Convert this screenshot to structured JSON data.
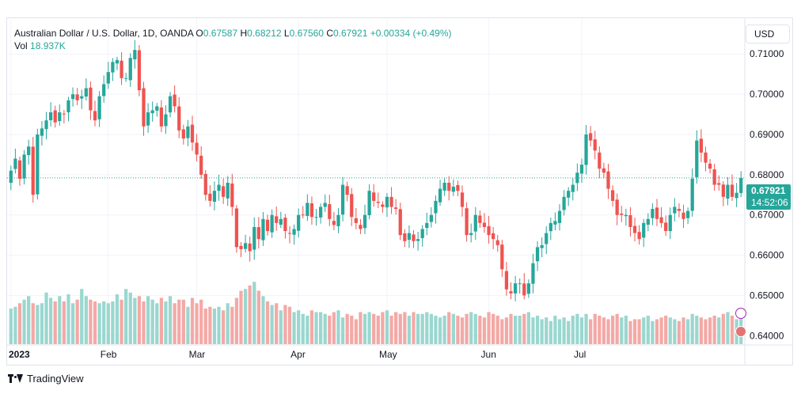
{
  "header": {
    "symbol": "Australian Dollar / U.S. Dollar, 1D, OANDA",
    "o_label": "O",
    "o_value": "0.67587",
    "h_label": "H",
    "h_value": "0.68212",
    "l_label": "L",
    "l_value": "0.67560",
    "c_label": "C",
    "c_value": "0.67921",
    "change": "+0.00334 (+0.49%)",
    "vol_label": "Vol",
    "vol_value": "18.937K"
  },
  "currency_button": "USD",
  "price_tag": {
    "price": "0.67921",
    "countdown": "14:52:06"
  },
  "brand": "TradingView",
  "colors": {
    "up": "#26a69a",
    "down": "#ef5350",
    "up_vol": "#9ad7cf",
    "down_vol": "#f3a9a6",
    "grid": "#f0f3fa"
  },
  "chart_data": {
    "type": "candlestick",
    "title": "Australian Dollar / U.S. Dollar, 1D, OANDA",
    "ylim": [
      0.6375,
      0.7185
    ],
    "y_ticks": [
      "0.71000",
      "0.70000",
      "0.69000",
      "0.68000",
      "0.67000",
      "0.66000",
      "0.65000",
      "0.64000"
    ],
    "x_ticks": [
      {
        "label": "2023",
        "index": 0
      },
      {
        "label": "Feb",
        "index": 22
      },
      {
        "label": "Mar",
        "index": 42
      },
      {
        "label": "Apr",
        "index": 65
      },
      {
        "label": "May",
        "index": 85
      },
      {
        "label": "Jun",
        "index": 108
      },
      {
        "label": "Jul",
        "index": 129
      }
    ],
    "last_close": 0.67921,
    "closes": [
      0.681,
      0.684,
      0.679,
      0.685,
      0.687,
      0.675,
      0.69,
      0.6915,
      0.6935,
      0.6955,
      0.693,
      0.6955,
      0.695,
      0.6985,
      0.7,
      0.6985,
      0.6995,
      0.7015,
      0.696,
      0.6935,
      0.6995,
      0.7025,
      0.7055,
      0.708,
      0.7085,
      0.704,
      0.704,
      0.709,
      0.711,
      0.701,
      0.692,
      0.6955,
      0.696,
      0.697,
      0.692,
      0.695,
      0.6995,
      0.697,
      0.691,
      0.689,
      0.692,
      0.688,
      0.685,
      0.68,
      0.675,
      0.6735,
      0.676,
      0.6775,
      0.6745,
      0.678,
      0.672,
      0.662,
      0.6615,
      0.663,
      0.661,
      0.667,
      0.664,
      0.669,
      0.666,
      0.67,
      0.668,
      0.669,
      0.666,
      0.6655,
      0.6665,
      0.67,
      0.67,
      0.673,
      0.6695,
      0.6695,
      0.672,
      0.673,
      0.669,
      0.6675,
      0.67,
      0.6775,
      0.675,
      0.6695,
      0.668,
      0.6665,
      0.67,
      0.676,
      0.6735,
      0.673,
      0.672,
      0.6745,
      0.672,
      0.6715,
      0.665,
      0.6635,
      0.6655,
      0.6635,
      0.664,
      0.6665,
      0.668,
      0.67,
      0.6735,
      0.6765,
      0.678,
      0.676,
      0.677,
      0.676,
      0.672,
      0.665,
      0.6655,
      0.67,
      0.668,
      0.667,
      0.665,
      0.664,
      0.6625,
      0.6565,
      0.6515,
      0.6505,
      0.653,
      0.653,
      0.65,
      0.653,
      0.658,
      0.662,
      0.6625,
      0.6655,
      0.668,
      0.6685,
      0.671,
      0.6745,
      0.676,
      0.6775,
      0.6805,
      0.6825,
      0.69,
      0.6885,
      0.686,
      0.6815,
      0.6805,
      0.6765,
      0.6735,
      0.67,
      0.67,
      0.67,
      0.667,
      0.6655,
      0.664,
      0.668,
      0.669,
      0.6715,
      0.669,
      0.668,
      0.666,
      0.67,
      0.672,
      0.671,
      0.669,
      0.671,
      0.679,
      0.6885,
      0.6855,
      0.683,
      0.6815,
      0.6775,
      0.6775,
      0.6745,
      0.6775,
      0.6745,
      0.6755,
      0.6792
    ],
    "volume_ylim": [
      0,
      80
    ],
    "volumes": [
      40,
      42,
      46,
      50,
      54,
      46,
      44,
      46,
      58,
      52,
      48,
      54,
      48,
      56,
      46,
      50,
      62,
      54,
      50,
      48,
      46,
      48,
      46,
      48,
      56,
      50,
      62,
      58,
      52,
      54,
      48,
      54,
      50,
      46,
      52,
      48,
      54,
      46,
      50,
      50,
      42,
      52,
      46,
      50,
      40,
      42,
      40,
      42,
      38,
      46,
      42,
      52,
      60,
      62,
      66,
      70,
      60,
      54,
      48,
      44,
      46,
      38,
      44,
      42,
      36,
      38,
      34,
      32,
      38,
      36,
      36,
      34,
      32,
      36,
      38,
      30,
      34,
      32,
      28,
      36,
      34,
      36,
      34,
      32,
      36,
      38,
      32,
      36,
      34,
      36,
      32,
      36,
      34,
      34,
      36,
      34,
      32,
      30,
      32,
      36,
      34,
      32,
      30,
      34,
      36,
      34,
      32,
      30,
      36,
      34,
      32,
      28,
      30,
      34,
      32,
      32,
      34,
      36,
      30,
      32,
      28,
      30,
      26,
      32,
      28,
      30,
      26,
      32,
      34,
      30,
      34,
      28,
      34,
      32,
      30,
      28,
      32,
      34,
      30,
      32,
      26,
      28,
      28,
      30,
      32,
      26,
      28,
      30,
      32,
      30,
      28,
      26,
      30,
      28,
      34,
      32,
      30,
      28,
      30,
      32,
      30,
      34,
      36,
      32,
      28,
      30
    ]
  }
}
